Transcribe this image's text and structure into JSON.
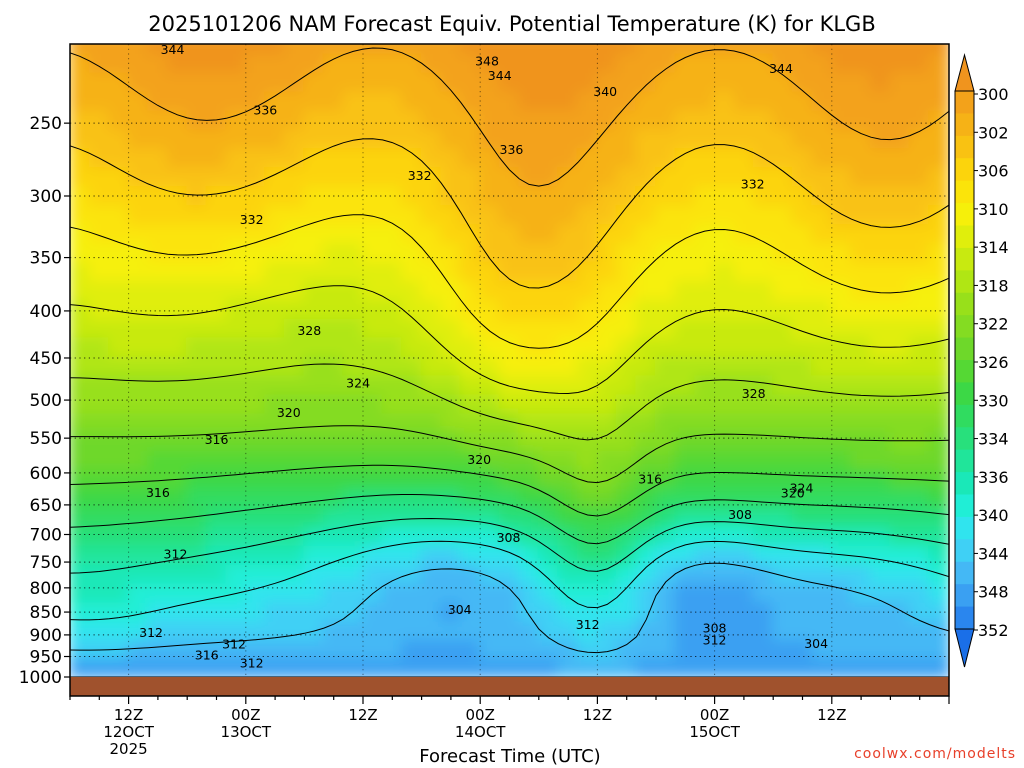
{
  "chart_data": {
    "type": "heatmap",
    "title": "2025101206 NAM Forecast Equiv. Potential Temperature (K) for KLGB",
    "xlabel": "Forecast Time (UTC)",
    "ylabel": "",
    "watermark": "coolwx.com/modelts",
    "y_scale": "log-pressure",
    "y_inverted": true,
    "grid": true,
    "ylim": [
      1000,
      200
    ],
    "xlim": [
      -6,
      84
    ],
    "x_ticks": [
      {
        "hour": 0,
        "lines": [
          "12Z",
          "12OCT",
          "2025"
        ]
      },
      {
        "hour": 12,
        "lines": [
          "00Z",
          "13OCT"
        ]
      },
      {
        "hour": 24,
        "lines": [
          "12Z"
        ]
      },
      {
        "hour": 36,
        "lines": [
          "00Z",
          "14OCT"
        ]
      },
      {
        "hour": 48,
        "lines": [
          "12Z"
        ]
      },
      {
        "hour": 60,
        "lines": [
          "00Z",
          "15OCT"
        ]
      },
      {
        "hour": 72,
        "lines": [
          "12Z"
        ]
      }
    ],
    "y_ticks": [
      250,
      300,
      350,
      400,
      450,
      500,
      550,
      600,
      650,
      700,
      750,
      800,
      850,
      900,
      950,
      1000
    ],
    "colorbar": {
      "unit": "K",
      "levels": [
        300,
        302,
        304,
        306,
        308,
        310,
        312,
        314,
        316,
        318,
        320,
        322,
        324,
        326,
        328,
        330,
        332,
        334,
        336,
        338,
        340,
        342,
        344,
        346,
        348,
        350,
        352
      ],
      "colors": [
        "#1a6fe8",
        "#2a86ee",
        "#3aa0f2",
        "#44b8f5",
        "#3fd0f5",
        "#30e4ee",
        "#20eed6",
        "#1ae8b8",
        "#20e59a",
        "#28e07c",
        "#30dc60",
        "#3cd846",
        "#55d834",
        "#6ed82a",
        "#84dc22",
        "#98e01a",
        "#b0e614",
        "#c8ea10",
        "#e0ee0c",
        "#f6f00a",
        "#fbe40a",
        "#fcd40c",
        "#f9c212",
        "#f6b216",
        "#f3a21a",
        "#f0941e"
      ],
      "labels": [
        "300",
        "302",
        "306",
        "310",
        "314",
        "318",
        "322",
        "326",
        "330",
        "334",
        "336",
        "340",
        "344",
        "348",
        "352"
      ]
    },
    "level_labels": [
      {
        "text": "344",
        "hour": 4.5,
        "p": 208
      },
      {
        "text": "348",
        "hour": 36.7,
        "p": 214
      },
      {
        "text": "344",
        "hour": 38,
        "p": 222
      },
      {
        "text": "340",
        "hour": 48.8,
        "p": 231
      },
      {
        "text": "344",
        "hour": 66.8,
        "p": 218
      },
      {
        "text": "336",
        "hour": 14,
        "p": 242
      },
      {
        "text": "336",
        "hour": 39.2,
        "p": 267
      },
      {
        "text": "332",
        "hour": 29.8,
        "p": 285
      },
      {
        "text": "332",
        "hour": 12.6,
        "p": 318
      },
      {
        "text": "332",
        "hour": 63.9,
        "p": 291
      },
      {
        "text": "328",
        "hour": 18.5,
        "p": 420
      },
      {
        "text": "328",
        "hour": 64,
        "p": 492
      },
      {
        "text": "324",
        "hour": 23.5,
        "p": 479
      },
      {
        "text": "324",
        "hour": 68.9,
        "p": 623
      },
      {
        "text": "320",
        "hour": 16.4,
        "p": 516
      },
      {
        "text": "320",
        "hour": 68,
        "p": 631
      },
      {
        "text": "320",
        "hour": 35.9,
        "p": 580
      },
      {
        "text": "316",
        "hour": 9,
        "p": 552
      },
      {
        "text": "316",
        "hour": 53.4,
        "p": 609
      },
      {
        "text": "316",
        "hour": 3,
        "p": 630
      },
      {
        "text": "312",
        "hour": 4.8,
        "p": 735
      },
      {
        "text": "312",
        "hour": 2.3,
        "p": 895
      },
      {
        "text": "312",
        "hour": 10.8,
        "p": 921
      },
      {
        "text": "312",
        "hour": 12.6,
        "p": 966
      },
      {
        "text": "312",
        "hour": 47,
        "p": 877
      },
      {
        "text": "312",
        "hour": 60,
        "p": 911
      },
      {
        "text": "316",
        "hour": 8,
        "p": 946
      },
      {
        "text": "308",
        "hour": 38.9,
        "p": 705
      },
      {
        "text": "308",
        "hour": 60,
        "p": 885
      },
      {
        "text": "308",
        "hour": 62.6,
        "p": 666
      },
      {
        "text": "304",
        "hour": 33.9,
        "p": 845
      },
      {
        "text": "304",
        "hour": 70.4,
        "p": 919
      }
    ]
  }
}
